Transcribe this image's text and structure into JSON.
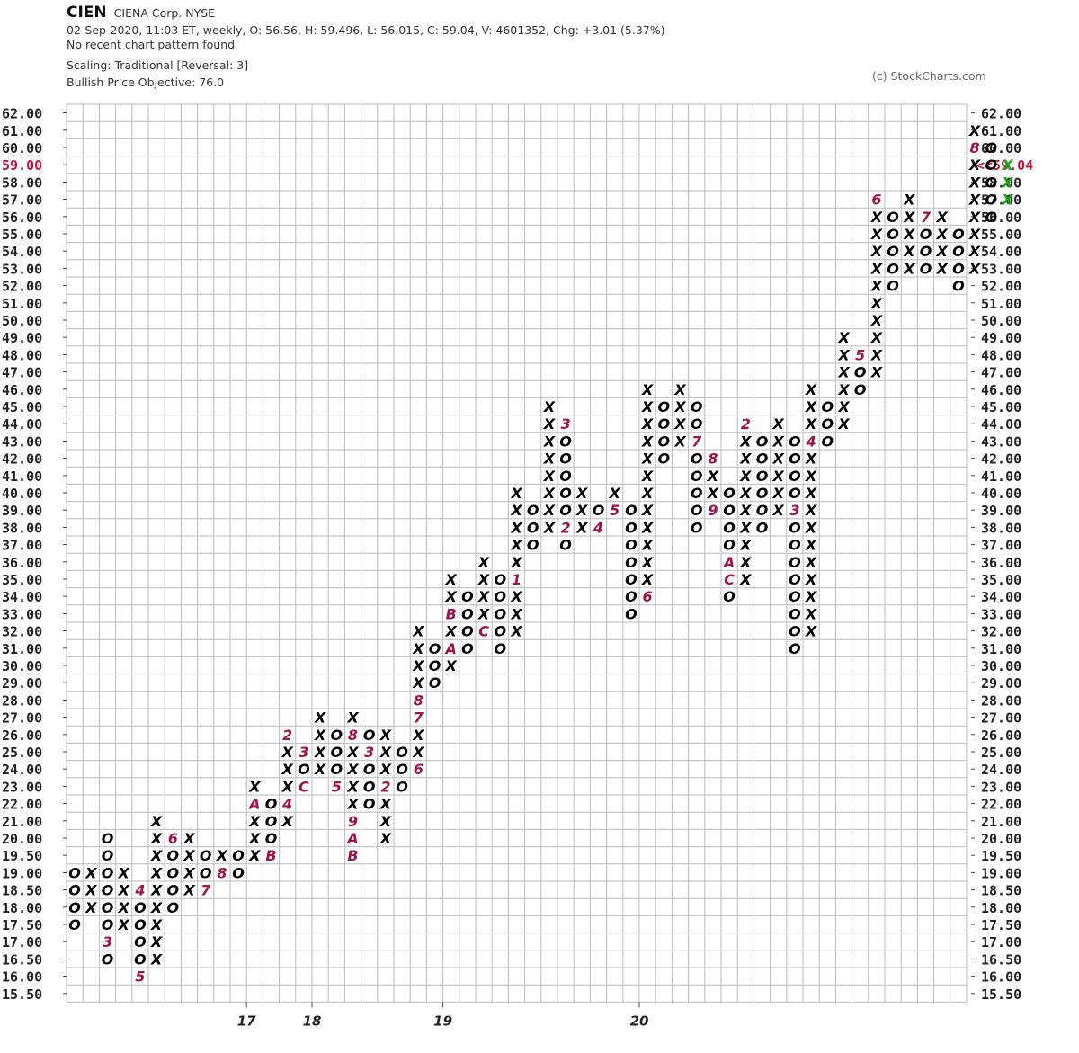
{
  "header": {
    "symbol": "CIEN",
    "company": "CIENA Corp.  NYSE",
    "info": "02-Sep-2020, 11:03 ET, weekly, O: 56.56, H: 59.496, L: 56.015, C: 59.04, V: 4601352, Chg: +3.01 (5.37%)",
    "pattern": "No recent chart pattern found",
    "scaling": "Scaling: Traditional [Reversal: 3]",
    "objective": "Bullish Price Objective: 76.0",
    "copyright": "(c) StockCharts.com"
  },
  "colors": {
    "x": "#000000",
    "o": "#000000",
    "month": "#a0144b",
    "current_x": "#18a818",
    "price_marker": "#c0143c",
    "grid": "#bbbbbb"
  },
  "chart_data": {
    "type": "point-and-figure",
    "reversal": 3,
    "price_levels": [
      "62.00",
      "61.00",
      "60.00",
      "59.00",
      "58.00",
      "57.00",
      "56.00",
      "55.00",
      "54.00",
      "53.00",
      "52.00",
      "51.00",
      "50.00",
      "49.00",
      "48.00",
      "47.00",
      "46.00",
      "45.00",
      "44.00",
      "43.00",
      "42.00",
      "41.00",
      "40.00",
      "39.00",
      "38.00",
      "37.00",
      "36.00",
      "35.00",
      "34.00",
      "33.00",
      "32.00",
      "31.00",
      "30.00",
      "29.00",
      "28.00",
      "27.00",
      "26.00",
      "25.00",
      "24.00",
      "23.00",
      "22.00",
      "21.00",
      "20.00",
      "19.50",
      "19.00",
      "18.50",
      "18.00",
      "17.50",
      "17.00",
      "16.50",
      "16.00",
      "15.50"
    ],
    "last_price_label": "<<59.04",
    "last_price_level": "59.00",
    "year_labels": [
      {
        "label": "17",
        "column": 11
      },
      {
        "label": "18",
        "column": 15
      },
      {
        "label": "19",
        "column": 23
      },
      {
        "label": "20",
        "column": 35
      }
    ],
    "columns": [
      {
        "type": "O",
        "high": "19.00",
        "low": "17.50"
      },
      {
        "type": "X",
        "high": "19.00",
        "low": "18.00"
      },
      {
        "type": "O",
        "high": "20.00",
        "low": "16.50",
        "marks": {
          "17.00": "3"
        }
      },
      {
        "type": "X",
        "high": "19.00",
        "low": "17.50"
      },
      {
        "type": "O",
        "high": "18.50",
        "low": "16.00",
        "marks": {
          "18.50": "4",
          "16.00": "5"
        }
      },
      {
        "type": "X",
        "high": "21.00",
        "low": "16.50"
      },
      {
        "type": "O",
        "high": "20.00",
        "low": "18.00",
        "marks": {
          "20.00": "6"
        }
      },
      {
        "type": "X",
        "high": "20.00",
        "low": "18.50"
      },
      {
        "type": "O",
        "high": "19.50",
        "low": "18.50",
        "marks": {
          "18.50": "7"
        }
      },
      {
        "type": "X",
        "high": "19.50",
        "low": "19.00",
        "marks": {
          "19.00": "8"
        }
      },
      {
        "type": "O",
        "high": "19.50",
        "low": "19.00"
      },
      {
        "type": "X",
        "high": "23.00",
        "low": "19.50",
        "marks": {
          "22.00": "A"
        }
      },
      {
        "type": "O",
        "high": "22.00",
        "low": "19.50",
        "marks": {
          "19.50": "B"
        }
      },
      {
        "type": "X",
        "high": "26.00",
        "low": "21.00",
        "marks": {
          "26.00": "2",
          "22.00": "4"
        }
      },
      {
        "type": "O",
        "high": "25.00",
        "low": "23.00",
        "marks": {
          "25.00": "3",
          "23.00": "C"
        }
      },
      {
        "type": "X",
        "high": "27.00",
        "low": "24.00"
      },
      {
        "type": "O",
        "high": "26.00",
        "low": "23.00",
        "marks": {
          "23.00": "5"
        }
      },
      {
        "type": "X",
        "high": "27.00",
        "low": "19.50",
        "marks": {
          "26.00": "8",
          "21.00": "9",
          "20.00": "A",
          "19.50": "B"
        }
      },
      {
        "type": "O",
        "high": "26.00",
        "low": "22.00",
        "marks": {
          "25.00": "3"
        }
      },
      {
        "type": "X",
        "high": "26.00",
        "low": "20.00",
        "marks": {
          "23.00": "2"
        }
      },
      {
        "type": "O",
        "high": "25.00",
        "low": "23.00"
      },
      {
        "type": "X",
        "high": "32.00",
        "low": "24.00",
        "marks": {
          "28.00": "8",
          "27.00": "7",
          "24.00": "6"
        }
      },
      {
        "type": "O",
        "high": "31.00",
        "low": "29.00"
      },
      {
        "type": "X",
        "high": "35.00",
        "low": "30.00",
        "marks": {
          "31.00": "A",
          "33.00": "B"
        }
      },
      {
        "type": "O",
        "high": "34.00",
        "low": "31.00"
      },
      {
        "type": "X",
        "high": "36.00",
        "low": "32.00",
        "marks": {
          "32.00": "C"
        }
      },
      {
        "type": "O",
        "high": "35.00",
        "low": "31.00"
      },
      {
        "type": "X",
        "high": "40.00",
        "low": "32.00",
        "marks": {
          "35.00": "1"
        }
      },
      {
        "type": "O",
        "high": "39.00",
        "low": "37.00"
      },
      {
        "type": "X",
        "high": "45.00",
        "low": "38.00"
      },
      {
        "type": "O",
        "high": "44.00",
        "low": "37.00",
        "marks": {
          "44.00": "3",
          "38.00": "2"
        }
      },
      {
        "type": "X",
        "high": "40.00",
        "low": "38.00"
      },
      {
        "type": "O",
        "high": "39.00",
        "low": "38.00",
        "marks": {
          "38.00": "4"
        }
      },
      {
        "type": "X",
        "high": "40.00",
        "low": "39.00",
        "marks": {
          "39.00": "5"
        }
      },
      {
        "type": "O",
        "high": "39.00",
        "low": "33.00"
      },
      {
        "type": "X",
        "high": "46.00",
        "low": "34.00",
        "marks": {
          "34.00": "6"
        }
      },
      {
        "type": "O",
        "high": "45.00",
        "low": "42.00"
      },
      {
        "type": "X",
        "high": "46.00",
        "low": "43.00"
      },
      {
        "type": "O",
        "high": "45.00",
        "low": "38.00",
        "marks": {
          "43.00": "7"
        }
      },
      {
        "type": "X",
        "high": "42.00",
        "low": "39.00",
        "marks": {
          "42.00": "8",
          "39.00": "9"
        }
      },
      {
        "type": "O",
        "high": "40.00",
        "low": "34.00",
        "marks": {
          "36.00": "A",
          "35.00": "C"
        }
      },
      {
        "type": "X",
        "high": "44.00",
        "low": "35.00",
        "marks": {
          "44.00": "2"
        }
      },
      {
        "type": "O",
        "high": "43.00",
        "low": "38.00"
      },
      {
        "type": "X",
        "high": "44.00",
        "low": "39.00"
      },
      {
        "type": "O",
        "high": "43.00",
        "low": "31.00",
        "marks": {
          "39.00": "3"
        }
      },
      {
        "type": "X",
        "high": "46.00",
        "low": "32.00",
        "marks": {
          "43.00": "4"
        }
      },
      {
        "type": "O",
        "high": "45.00",
        "low": "43.00"
      },
      {
        "type": "X",
        "high": "49.00",
        "low": "44.00"
      },
      {
        "type": "O",
        "high": "48.00",
        "low": "46.00",
        "marks": {
          "48.00": "5"
        }
      },
      {
        "type": "X",
        "high": "57.00",
        "low": "47.00",
        "marks": {
          "57.00": "6"
        }
      },
      {
        "type": "O",
        "high": "56.00",
        "low": "52.00"
      },
      {
        "type": "X",
        "high": "57.00",
        "low": "53.00"
      },
      {
        "type": "O",
        "high": "56.00",
        "low": "53.00",
        "marks": {
          "56.00": "7"
        }
      },
      {
        "type": "X",
        "high": "56.00",
        "low": "53.00"
      },
      {
        "type": "O",
        "high": "55.00",
        "low": "52.00"
      },
      {
        "type": "X",
        "high": "61.00",
        "low": "53.00",
        "marks": {
          "60.00": "8"
        }
      },
      {
        "type": "O",
        "high": "60.00",
        "low": "56.00"
      },
      {
        "type": "X",
        "high": "59.00",
        "low": "57.00",
        "current": true
      }
    ]
  }
}
